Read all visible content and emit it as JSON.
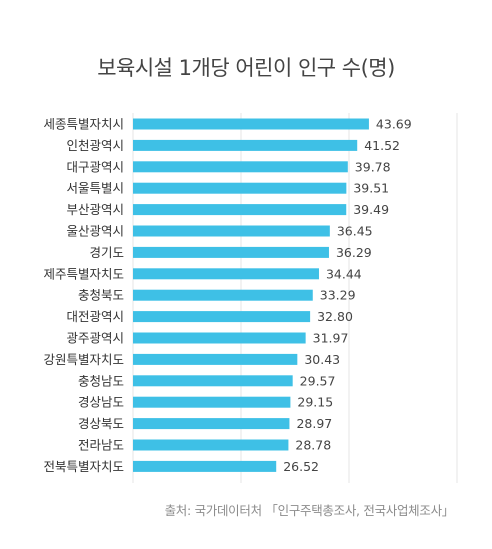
{
  "chart_data": {
    "type": "bar",
    "orientation": "horizontal",
    "title": "보육시설 1개당 어린이 인구 수(명)",
    "categories": [
      "세종특별자치시",
      "인천광역시",
      "대구광역시",
      "서울특별시",
      "부산광역시",
      "울산광역시",
      "경기도",
      "제주특별자치도",
      "충청북도",
      "대전광역시",
      "광주광역시",
      "강원특별자치도",
      "충청남도",
      "경상남도",
      "경상북도",
      "전라남도",
      "전북특별자치도"
    ],
    "values": [
      43.69,
      41.52,
      39.78,
      39.51,
      39.49,
      36.45,
      36.29,
      34.44,
      33.29,
      32.8,
      31.97,
      30.43,
      29.57,
      29.15,
      28.97,
      28.78,
      26.52
    ],
    "value_labels": [
      "43.69",
      "41.52",
      "39.78",
      "39.51",
      "39.49",
      "36.45",
      "36.29",
      "34.44",
      "33.29",
      "32.80",
      "31.97",
      "30.43",
      "29.57",
      "29.15",
      "28.97",
      "28.78",
      "26.52"
    ],
    "xlim": [
      0,
      60
    ],
    "grid": true,
    "legend": "none",
    "bar_color": "#3ec0e6",
    "source": "출처: 국가데이터처 「인구주택총조사, 전국사업체조사」"
  }
}
